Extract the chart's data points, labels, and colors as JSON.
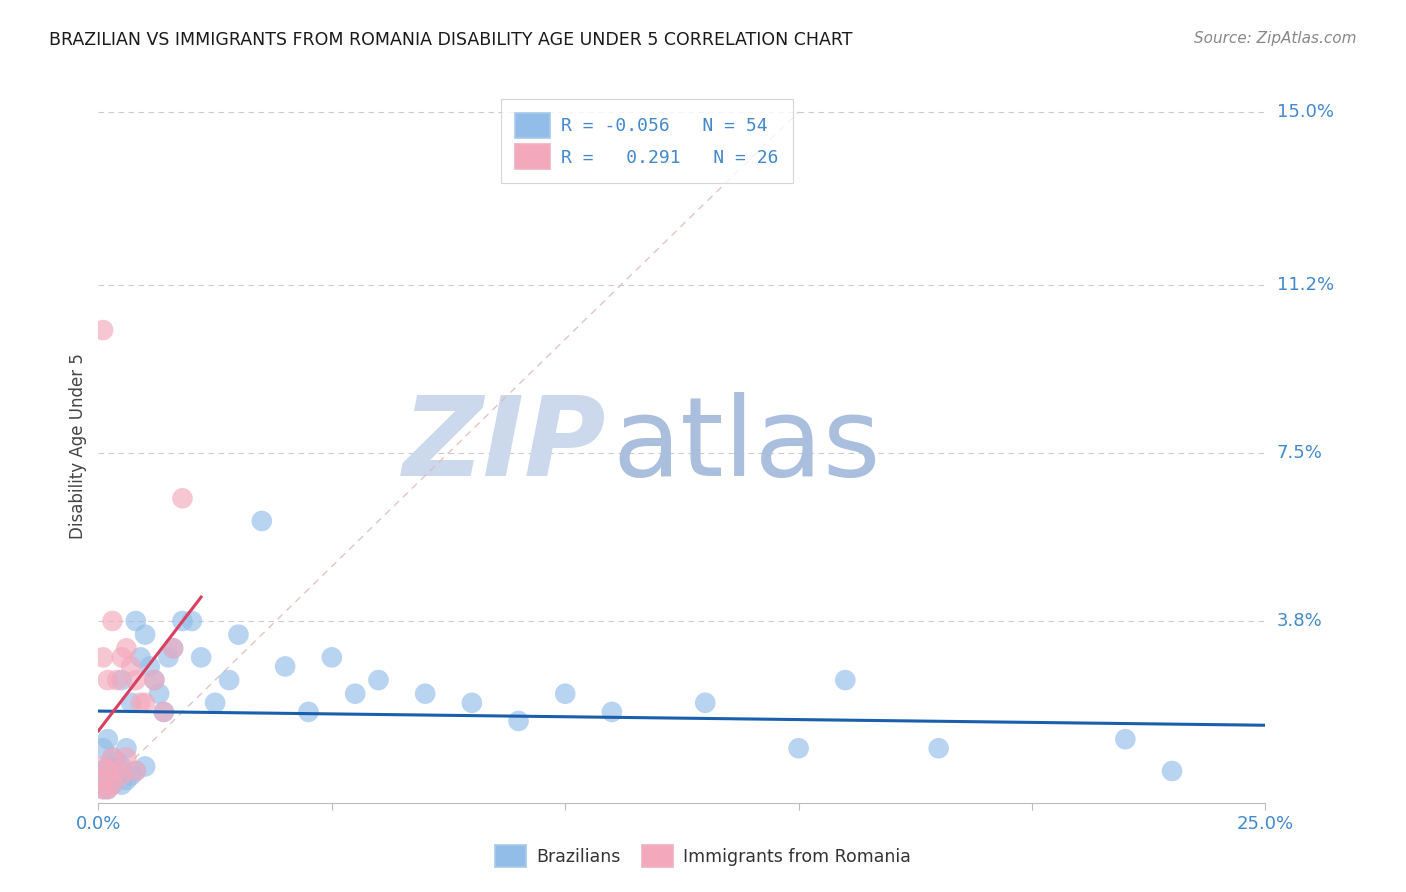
{
  "title": "BRAZILIAN VS IMMIGRANTS FROM ROMANIA DISABILITY AGE UNDER 5 CORRELATION CHART",
  "source": "Source: ZipAtlas.com",
  "ylabel": "Disability Age Under 5",
  "xlim": [
    0.0,
    0.25
  ],
  "ylim": [
    -0.002,
    0.155
  ],
  "r_brazil": -0.056,
  "n_brazil": 54,
  "r_romania": 0.291,
  "n_romania": 26,
  "blue_color": "#92BDE8",
  "pink_color": "#F4A8BC",
  "blue_line_color": "#1A5FAB",
  "pink_line_color": "#D94060",
  "diagonal_color": "#DDBBBB",
  "grid_color": "#CCCCCC",
  "title_color": "#1A1A1A",
  "right_label_color": "#4488CC",
  "ytick_vals": [
    0.0,
    0.038,
    0.075,
    0.112,
    0.15
  ],
  "ytick_labels": [
    "",
    "3.8%",
    "7.5%",
    "11.2%",
    "15.0%"
  ],
  "brazil_x": [
    0.001,
    0.001,
    0.001,
    0.001,
    0.002,
    0.002,
    0.002,
    0.002,
    0.003,
    0.003,
    0.003,
    0.004,
    0.004,
    0.005,
    0.005,
    0.005,
    0.006,
    0.006,
    0.007,
    0.007,
    0.008,
    0.008,
    0.009,
    0.01,
    0.01,
    0.011,
    0.012,
    0.013,
    0.014,
    0.015,
    0.016,
    0.018,
    0.02,
    0.022,
    0.025,
    0.028,
    0.03,
    0.035,
    0.04,
    0.045,
    0.05,
    0.055,
    0.06,
    0.07,
    0.08,
    0.09,
    0.1,
    0.11,
    0.13,
    0.15,
    0.16,
    0.18,
    0.22,
    0.23
  ],
  "brazil_y": [
    0.001,
    0.003,
    0.005,
    0.01,
    0.001,
    0.003,
    0.006,
    0.012,
    0.002,
    0.005,
    0.008,
    0.004,
    0.007,
    0.002,
    0.006,
    0.025,
    0.003,
    0.01,
    0.004,
    0.02,
    0.005,
    0.038,
    0.03,
    0.006,
    0.035,
    0.028,
    0.025,
    0.022,
    0.018,
    0.03,
    0.032,
    0.038,
    0.038,
    0.03,
    0.02,
    0.025,
    0.035,
    0.06,
    0.028,
    0.018,
    0.03,
    0.022,
    0.025,
    0.022,
    0.02,
    0.016,
    0.022,
    0.018,
    0.02,
    0.01,
    0.025,
    0.01,
    0.012,
    0.005
  ],
  "romania_x": [
    0.001,
    0.001,
    0.001,
    0.001,
    0.001,
    0.002,
    0.002,
    0.002,
    0.003,
    0.003,
    0.003,
    0.004,
    0.004,
    0.005,
    0.005,
    0.006,
    0.006,
    0.007,
    0.008,
    0.008,
    0.009,
    0.01,
    0.012,
    0.014,
    0.016,
    0.018
  ],
  "romania_y": [
    0.001,
    0.003,
    0.006,
    0.03,
    0.102,
    0.001,
    0.005,
    0.025,
    0.002,
    0.008,
    0.038,
    0.005,
    0.025,
    0.004,
    0.03,
    0.008,
    0.032,
    0.028,
    0.005,
    0.025,
    0.02,
    0.02,
    0.025,
    0.018,
    0.032,
    0.065
  ]
}
